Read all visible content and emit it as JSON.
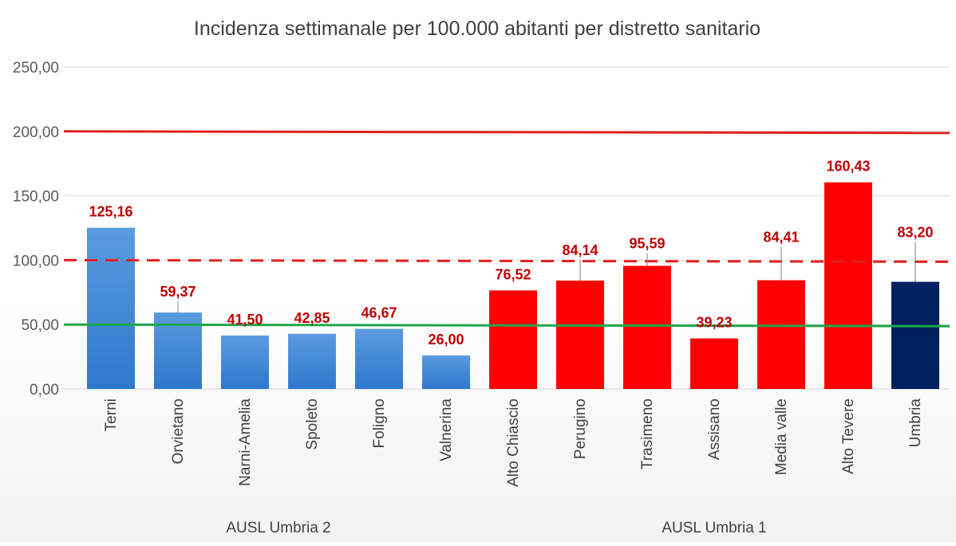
{
  "chart_data": {
    "type": "bar",
    "title": "Incidenza settimanale per 100.000 abitanti per distretto sanitario",
    "categories": [
      "Terni",
      "Orvietano",
      "Narni-Amelia",
      "Spoleto",
      "Foligno",
      "Valnerina",
      "Alto Chiascio",
      "Perugino",
      "Trasimeno",
      "Assisano",
      "Media valle",
      "Alto Tevere",
      "Umbria"
    ],
    "values": [
      125.16,
      59.37,
      41.5,
      42.85,
      46.67,
      26.0,
      76.52,
      84.14,
      95.59,
      39.23,
      84.41,
      160.43,
      83.2
    ],
    "data_labels": [
      "125,16",
      "59,37",
      "41,50",
      "42,85",
      "46,67",
      "26,00",
      "76,52",
      "84,14",
      "95,59",
      "39,23",
      "84,41",
      "160,43",
      "83,20"
    ],
    "bar_colors": [
      "#3d85d6",
      "#3d85d6",
      "#3d85d6",
      "#3d85d6",
      "#3d85d6",
      "#3d85d6",
      "#ff0000",
      "#ff0000",
      "#ff0000",
      "#ff0000",
      "#ff0000",
      "#ff0000",
      "#002060"
    ],
    "groups": [
      {
        "label": "AUSL Umbria 2",
        "start": 0,
        "end": 5
      },
      {
        "label": "AUSL Umbria 1",
        "start": 6,
        "end": 12
      }
    ],
    "ylim": [
      0,
      250
    ],
    "yticks": [
      0,
      50,
      100,
      150,
      200,
      250
    ],
    "ytick_labels": [
      "0,00",
      "50,00",
      "100,00",
      "150,00",
      "200,00",
      "250,00"
    ],
    "xlabel": "",
    "ylabel": "",
    "grid": true,
    "reference_lines": [
      {
        "value": 200,
        "style": "solid",
        "color": "#e02020"
      },
      {
        "value": 100,
        "style": "dashed",
        "color": "#e02020"
      },
      {
        "value": 50,
        "style": "solid",
        "color": "#1fa64a"
      }
    ],
    "label_color": "#c00000"
  }
}
